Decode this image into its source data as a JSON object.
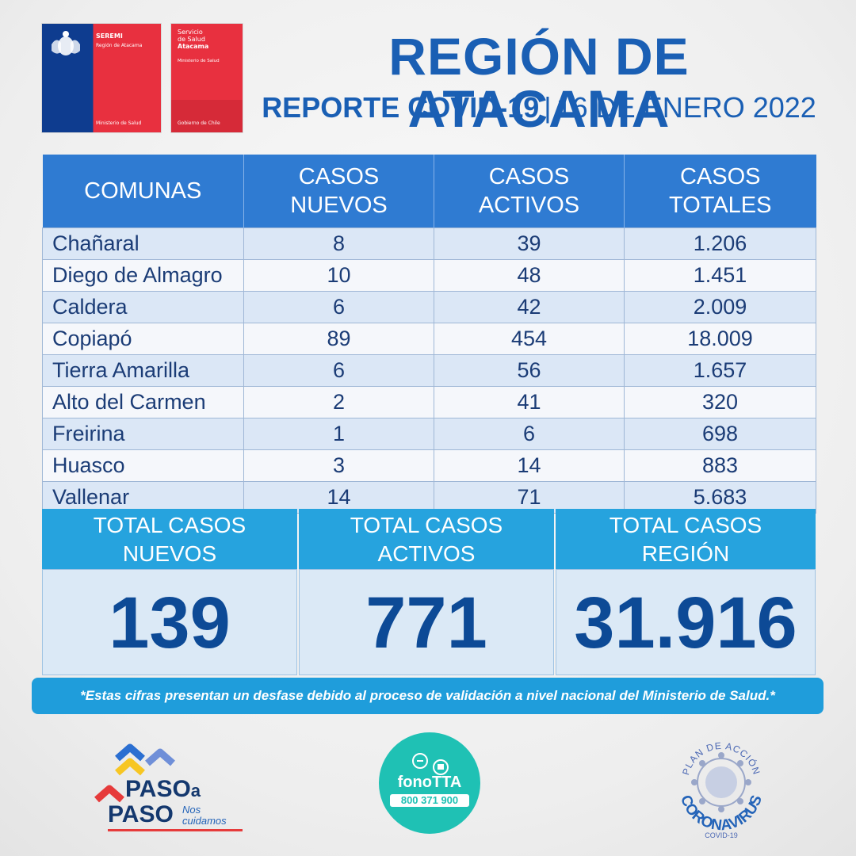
{
  "header": {
    "seremi": {
      "name": "SEREMI",
      "region": "Región de Atacama",
      "ministry": "Ministerio de Salud"
    },
    "servicio": {
      "line1": "Servicio",
      "line2": "de Salud",
      "line3": "Atacama",
      "ministry": "Ministerio de Salud",
      "gobierno": "Gobierno de Chile"
    },
    "title": "REGIÓN DE ATACAMA",
    "subtitle_bold": "REPORTE COVID-19",
    "separator": "|",
    "subtitle_date": "16 DE ENERO 2022"
  },
  "table": {
    "headers": [
      {
        "line1": "COMUNAS",
        "line2": ""
      },
      {
        "line1": "CASOS",
        "line2": "NUEVOS"
      },
      {
        "line1": "CASOS",
        "line2": "ACTIVOS"
      },
      {
        "line1": "CASOS",
        "line2": "TOTALES"
      }
    ],
    "rows": [
      {
        "comuna": "Chañaral",
        "nuevos": "8",
        "activos": "39",
        "totales": "1.206"
      },
      {
        "comuna": "Diego de Almagro",
        "nuevos": "10",
        "activos": "48",
        "totales": "1.451"
      },
      {
        "comuna": "Caldera",
        "nuevos": "6",
        "activos": "42",
        "totales": "2.009"
      },
      {
        "comuna": "Copiapó",
        "nuevos": "89",
        "activos": "454",
        "totales": "18.009"
      },
      {
        "comuna": "Tierra Amarilla",
        "nuevos": "6",
        "activos": "56",
        "totales": "1.657"
      },
      {
        "comuna": "Alto del Carmen",
        "nuevos": "2",
        "activos": "41",
        "totales": "320"
      },
      {
        "comuna": "Freirina",
        "nuevos": "1",
        "activos": "6",
        "totales": "698"
      },
      {
        "comuna": "Huasco",
        "nuevos": "3",
        "activos": "14",
        "totales": "883"
      },
      {
        "comuna": "Vallenar",
        "nuevos": "14",
        "activos": "71",
        "totales": "5.683"
      }
    ]
  },
  "totals": [
    {
      "line1": "TOTAL CASOS",
      "line2": "NUEVOS",
      "value": "139"
    },
    {
      "line1": "TOTAL CASOS",
      "line2": "ACTIVOS",
      "value": "771"
    },
    {
      "line1": "TOTAL CASOS",
      "line2": "REGIÓN",
      "value": "31.916"
    }
  ],
  "note": "*Estas cifras presentan un desfase debido al proceso de validación a nivel nacional del Ministerio de Salud.*",
  "footer": {
    "paso": {
      "paso1": "PASO",
      "a": "a",
      "paso2": "PASO",
      "nos": "Nos",
      "cuidamos": "cuidamos"
    },
    "fono": {
      "name": "fonoTTA",
      "number": "800 371 900"
    },
    "plan": {
      "top": "PLAN DE ACCIÓN",
      "main": "CORONAVIRUS",
      "bottom": "COVID-19"
    }
  },
  "colors": {
    "title_blue": "#1a5fb4",
    "table_header": "#2f7bd2",
    "totals_header": "#26a3de",
    "note_bar": "#1f9ddb",
    "seremi_blue": "#0e3c8f",
    "gov_red": "#e8303f"
  }
}
